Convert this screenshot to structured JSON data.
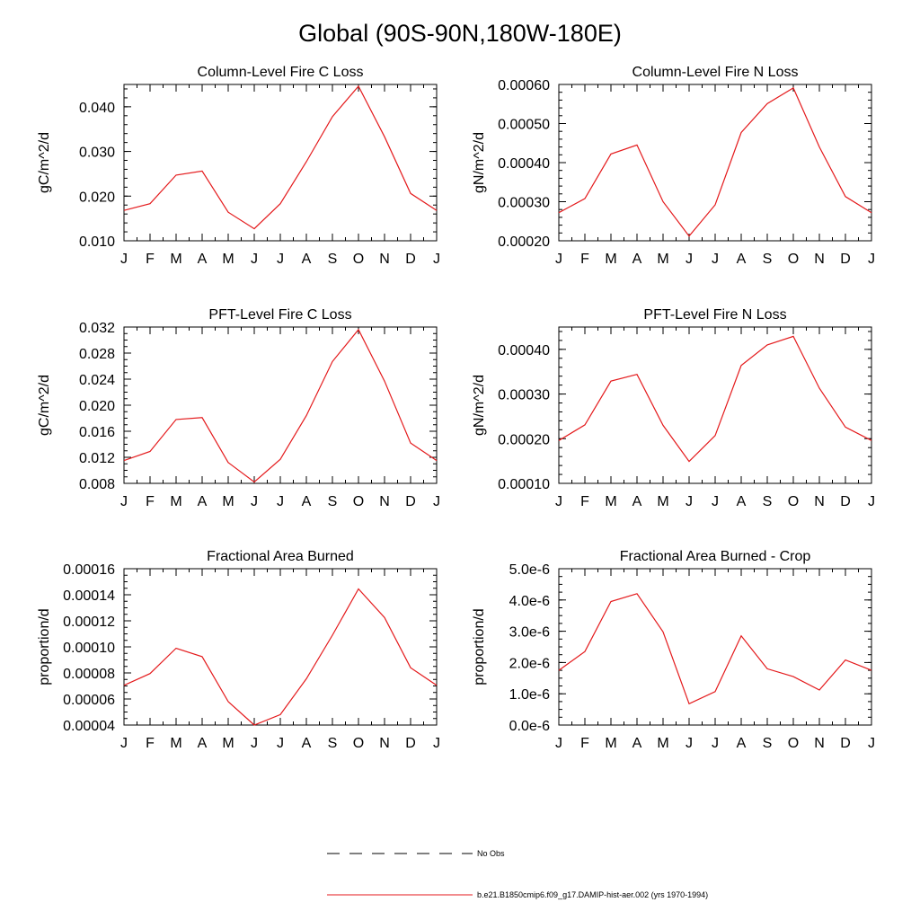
{
  "title": "Global (90S-90N,180W-180E)",
  "months": [
    "J",
    "F",
    "M",
    "A",
    "M",
    "J",
    "J",
    "A",
    "S",
    "O",
    "N",
    "D",
    "J"
  ],
  "colors": {
    "series": "#e41a1c",
    "axis": "#000000"
  },
  "legend": {
    "items": [
      {
        "label": "No Obs",
        "style": "dashed",
        "color": "#000000"
      },
      {
        "label": "b.e21.B1850cmip6.f09_g17.DAMIP-hist-aer.002 (yrs 1970-1994)",
        "style": "solid",
        "color": "#e41a1c"
      }
    ]
  },
  "chart_data": [
    {
      "type": "line",
      "title": "Column-Level Fire C Loss",
      "ylabel": "gC/m^2/d",
      "ylim": [
        0.01,
        0.045
      ],
      "yticks": [
        "0.010",
        "0.020",
        "0.030",
        "0.040"
      ],
      "ytick_values": [
        0.01,
        0.02,
        0.03,
        0.04
      ],
      "minor_step": 0.002,
      "values": [
        0.0168,
        0.0183,
        0.0247,
        0.0256,
        0.0164,
        0.0127,
        0.0183,
        0.0277,
        0.0378,
        0.0446,
        0.0333,
        0.0206,
        0.0168
      ]
    },
    {
      "type": "line",
      "title": "Column-Level Fire N Loss",
      "ylabel": "gN/m^2/d",
      "ylim": [
        0.0002,
        0.0006
      ],
      "yticks": [
        "0.00020",
        "0.00030",
        "0.00040",
        "0.00050",
        "0.00060"
      ],
      "ytick_values": [
        0.0002,
        0.0003,
        0.0004,
        0.0005,
        0.0006
      ],
      "minor_step": 2e-05,
      "values": [
        0.000272,
        0.000308,
        0.000422,
        0.000445,
        0.0003,
        0.000212,
        0.000292,
        0.000477,
        0.000551,
        0.000591,
        0.00044,
        0.000313,
        0.000272
      ]
    },
    {
      "type": "line",
      "title": "PFT-Level Fire C Loss",
      "ylabel": "gC/m^2/d",
      "ylim": [
        0.008,
        0.032
      ],
      "yticks": [
        "0.008",
        "0.012",
        "0.016",
        "0.020",
        "0.024",
        "0.028",
        "0.032"
      ],
      "ytick_values": [
        0.008,
        0.012,
        0.016,
        0.02,
        0.024,
        0.028,
        0.032
      ],
      "minor_step": 0.001,
      "values": [
        0.0115,
        0.0129,
        0.0178,
        0.0181,
        0.0112,
        0.0082,
        0.0117,
        0.0184,
        0.0267,
        0.0316,
        0.0237,
        0.0142,
        0.0115
      ]
    },
    {
      "type": "line",
      "title": "PFT-Level Fire N Loss",
      "ylabel": "gN/m^2/d",
      "ylim": [
        0.0001,
        0.00045
      ],
      "yticks": [
        "0.00010",
        "0.00020",
        "0.00030",
        "0.00040"
      ],
      "ytick_values": [
        0.0001,
        0.0002,
        0.0003,
        0.0004
      ],
      "minor_step": 2e-05,
      "values": [
        0.000196,
        0.000231,
        0.000329,
        0.000344,
        0.00023,
        0.000149,
        0.000207,
        0.000364,
        0.00041,
        0.000429,
        0.000313,
        0.000226,
        0.000196
      ]
    },
    {
      "type": "line",
      "title": "Fractional Area Burned",
      "ylabel": "proportion/d",
      "ylim": [
        4e-05,
        0.00016
      ],
      "yticks": [
        "0.00004",
        "0.00006",
        "0.00008",
        "0.00010",
        "0.00012",
        "0.00014",
        "0.00016"
      ],
      "ytick_values": [
        4e-05,
        6e-05,
        8e-05,
        0.0001,
        0.00012,
        0.00014,
        0.00016
      ],
      "minor_step": 5e-06,
      "values": [
        7.05e-05,
        7.95e-05,
        9.9e-05,
        9.25e-05,
        5.8e-05,
        4e-05,
        4.8e-05,
        7.55e-05,
        0.000109,
        0.0001445,
        0.0001225,
        8.4e-05,
        7.05e-05
      ]
    },
    {
      "type": "line",
      "title": "Fractional Area Burned - Crop",
      "ylabel": "proportion/d",
      "ylim": [
        0.0,
        5e-06
      ],
      "yticks": [
        "0.0e-6",
        "1.0e-6",
        "2.0e-6",
        "3.0e-6",
        "4.0e-6",
        "5.0e-6"
      ],
      "ytick_values": [
        0.0,
        1e-06,
        2e-06,
        3e-06,
        4e-06,
        5e-06
      ],
      "minor_step": 2.5e-07,
      "values": [
        1.75e-06,
        2.35e-06,
        3.95e-06,
        4.2e-06,
        2.98e-06,
        6.8e-07,
        1.07e-06,
        2.85e-06,
        1.8e-06,
        1.55e-06,
        1.12e-06,
        2.08e-06,
        1.75e-06
      ]
    }
  ]
}
